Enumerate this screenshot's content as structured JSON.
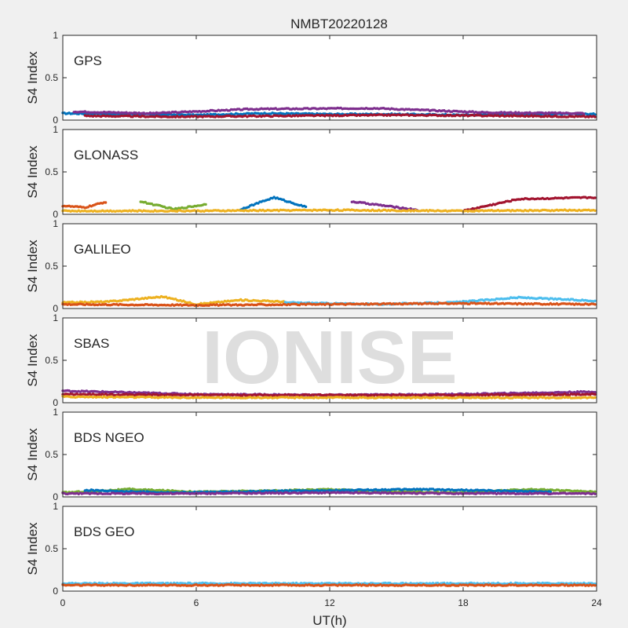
{
  "title": "NMBT20220128",
  "watermark": "IONISE",
  "chart_data": {
    "type": "scatter",
    "title": "NMBT20220128",
    "xlabel": "UT(h)",
    "ylabel": "S4 Index",
    "xlim": [
      0,
      24
    ],
    "ylim": [
      0,
      1
    ],
    "x_ticks": [
      "0",
      "6",
      "12",
      "18",
      "24"
    ],
    "y_ticks": [
      "0",
      "0.5",
      "1"
    ],
    "grid": false,
    "colors": [
      "#0072bd",
      "#d95319",
      "#edb120",
      "#7e2f8e",
      "#77ac30",
      "#4dbeee",
      "#a2142f"
    ],
    "panels": [
      {
        "label": "GPS",
        "tracks": [
          {
            "x": [
              0,
              3,
              6,
              9,
              12,
              15,
              18,
              21,
              24
            ],
            "y": [
              0.08,
              0.07,
              0.06,
              0.08,
              0.07,
              0.07,
              0.06,
              0.07,
              0.07
            ]
          },
          {
            "x": [
              0.5,
              4,
              8.5,
              14,
              19,
              23.5
            ],
            "y": [
              0.1,
              0.08,
              0.13,
              0.14,
              0.09,
              0.08
            ]
          },
          {
            "x": [
              1,
              5,
              10,
              15,
              20,
              24
            ],
            "y": [
              0.05,
              0.04,
              0.05,
              0.06,
              0.05,
              0.04
            ]
          }
        ]
      },
      {
        "label": "GLONASS",
        "tracks": [
          {
            "x": [
              0,
              1,
              2
            ],
            "y": [
              0.1,
              0.08,
              0.15
            ]
          },
          {
            "x": [
              3.5,
              5,
              6.5
            ],
            "y": [
              0.15,
              0.06,
              0.12
            ]
          },
          {
            "x": [
              8,
              9.5,
              11
            ],
            "y": [
              0.06,
              0.2,
              0.08
            ]
          },
          {
            "x": [
              13,
              14.5,
              16
            ],
            "y": [
              0.15,
              0.1,
              0.05
            ]
          },
          {
            "x": [
              18,
              20.5,
              24
            ],
            "y": [
              0.04,
              0.18,
              0.2
            ]
          },
          {
            "x": [
              0,
              6,
              12,
              18,
              24
            ],
            "y": [
              0.04,
              0.04,
              0.05,
              0.04,
              0.05
            ]
          }
        ]
      },
      {
        "label": "GALILEO",
        "tracks": [
          {
            "x": [
              0,
              2,
              4.5,
              6,
              8,
              10
            ],
            "y": [
              0.07,
              0.08,
              0.14,
              0.05,
              0.1,
              0.08
            ]
          },
          {
            "x": [
              10,
              14,
              17.5,
              20.5,
              24
            ],
            "y": [
              0.07,
              0.05,
              0.07,
              0.13,
              0.09
            ]
          },
          {
            "x": [
              0,
              6,
              12,
              18,
              24
            ],
            "y": [
              0.05,
              0.04,
              0.05,
              0.06,
              0.05
            ]
          }
        ]
      },
      {
        "label": "SBAS",
        "tracks": [
          {
            "x": [
              0,
              6,
              12,
              18,
              24
            ],
            "y": [
              0.14,
              0.1,
              0.09,
              0.1,
              0.13
            ]
          },
          {
            "x": [
              0,
              6,
              12,
              18,
              24
            ],
            "y": [
              0.1,
              0.09,
              0.09,
              0.09,
              0.1
            ]
          },
          {
            "x": [
              0,
              6,
              12,
              18,
              24
            ],
            "y": [
              0.07,
              0.06,
              0.06,
              0.06,
              0.06
            ]
          }
        ]
      },
      {
        "label": "BDS NGEO",
        "tracks": [
          {
            "x": [
              0,
              3,
              6,
              9,
              12,
              15,
              18,
              21,
              24
            ],
            "y": [
              0.05,
              0.09,
              0.06,
              0.07,
              0.09,
              0.06,
              0.05,
              0.09,
              0.06
            ]
          },
          {
            "x": [
              1,
              5,
              10,
              16,
              22
            ],
            "y": [
              0.08,
              0.05,
              0.07,
              0.09,
              0.06
            ]
          },
          {
            "x": [
              0,
              6,
              12,
              18,
              24
            ],
            "y": [
              0.04,
              0.04,
              0.05,
              0.04,
              0.04
            ]
          }
        ]
      },
      {
        "label": "BDS GEO",
        "tracks": [
          {
            "x": [
              0,
              6,
              12,
              18,
              24
            ],
            "y": [
              0.09,
              0.09,
              0.09,
              0.09,
              0.09
            ]
          },
          {
            "x": [
              0,
              6,
              12,
              18,
              24
            ],
            "y": [
              0.07,
              0.07,
              0.07,
              0.07,
              0.07
            ]
          }
        ]
      }
    ]
  }
}
